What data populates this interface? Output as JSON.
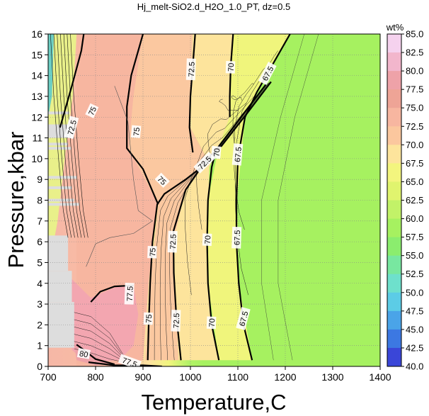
{
  "chart_data": {
    "type": "heatmap",
    "title": "Hj_melt-SiO2.d_H2O_1.0_PT, dz=0.5",
    "xlabel": "Temperature,C",
    "ylabel": "Pressure,kbar",
    "xlim": [
      700,
      1400
    ],
    "ylim": [
      0,
      16
    ],
    "x_ticks": [
      700,
      800,
      900,
      1000,
      1100,
      1200,
      1300,
      1400
    ],
    "y_ticks": [
      0,
      1,
      2,
      3,
      4,
      5,
      6,
      7,
      8,
      9,
      10,
      11,
      12,
      13,
      14,
      15,
      16
    ],
    "grid": true,
    "colorbar": {
      "label": "wt%",
      "range": [
        40.0,
        85.0
      ],
      "ticks": [
        "85.0",
        "82.5",
        "80.0",
        "77.5",
        "75.0",
        "72.5",
        "70.0",
        "67.5",
        "65.0",
        "62.5",
        "60.0",
        "57.5",
        "55.0",
        "52.5",
        "50.0",
        "47.5",
        "45.0",
        "42.5",
        "40.0"
      ],
      "colors": [
        "#f5d2ee",
        "#f2b6cc",
        "#eea2a8",
        "#eea496",
        "#f7b6a0",
        "#fbc79e",
        "#fde49c",
        "#f3f57e",
        "#e0f46e",
        "#c2f268",
        "#a6f160",
        "#8bed6e",
        "#78e7a0",
        "#6ee0cc",
        "#5ccce6",
        "#4aa4e8",
        "#3c78e2",
        "#3a46d8",
        "#3a18c8"
      ]
    },
    "contour_lines": [
      {
        "level": "80",
        "points": [
          [
            760,
            1.05
          ],
          [
            775,
            0.8
          ],
          [
            800,
            0.35
          ],
          [
            840,
            0.1
          ]
        ]
      },
      {
        "level": "77.5",
        "points": [
          [
            790,
            3.1
          ],
          [
            810,
            3.6
          ],
          [
            840,
            3.85
          ],
          [
            880,
            3.9
          ]
        ]
      },
      {
        "level": "77.5",
        "points": [
          [
            785,
            0.2
          ],
          [
            840,
            0.05
          ],
          [
            900,
            0.05
          ],
          [
            940,
            0.0
          ]
        ]
      },
      {
        "level": "75",
        "points": [
          [
            725,
            11.5
          ],
          [
            750,
            13.5
          ],
          [
            770,
            15.2
          ],
          [
            775,
            16
          ]
        ]
      },
      {
        "level": "75",
        "points": [
          [
            910,
            0.3
          ],
          [
            912,
            2.0
          ],
          [
            915,
            4.0
          ],
          [
            920,
            6.0
          ],
          [
            930,
            7.8
          ],
          [
            945,
            8.3
          ],
          [
            990,
            9.0
          ],
          [
            1035,
            9.8
          ],
          [
            1060,
            10.6
          ],
          [
            1110,
            12.1
          ],
          [
            1140,
            13.0
          ],
          [
            1160,
            13.6
          ]
        ]
      },
      {
        "level": "75",
        "points": [
          [
            900,
            16
          ],
          [
            875,
            14.0
          ],
          [
            866,
            12.5
          ],
          [
            866,
            10.5
          ],
          [
            900,
            9.5
          ],
          [
            932,
            7.8
          ]
        ]
      },
      {
        "level": "72.5",
        "points": [
          [
            980,
            0.3
          ],
          [
            970,
            2.5
          ],
          [
            965,
            4.5
          ],
          [
            964,
            6.5
          ],
          [
            990,
            8.5
          ],
          [
            1035,
            10.0
          ],
          [
            1065,
            10.6
          ],
          [
            1120,
            12.2
          ],
          [
            1170,
            13.7
          ]
        ]
      },
      {
        "level": "72.5",
        "points": [
          [
            1010,
            16
          ],
          [
            1005,
            14.5
          ],
          [
            1000,
            13.0
          ],
          [
            998,
            11.5
          ],
          [
            1005,
            10.3
          ]
        ]
      },
      {
        "level": "70",
        "points": [
          [
            1060,
            0.3
          ],
          [
            1045,
            2.0
          ],
          [
            1037,
            4.0
          ],
          [
            1035,
            6.0
          ],
          [
            1037,
            8.0
          ],
          [
            1045,
            9.6
          ],
          [
            1055,
            10.5
          ]
        ]
      },
      {
        "level": "70",
        "points": [
          [
            1090,
            16
          ],
          [
            1085,
            14.5
          ],
          [
            1083,
            13.0
          ],
          [
            1083,
            12.0
          ]
        ]
      },
      {
        "level": "67.5",
        "points": [
          [
            1130,
            0.3
          ],
          [
            1112,
            2.0
          ],
          [
            1102,
            4.0
          ],
          [
            1097,
            6.0
          ],
          [
            1097,
            8.0
          ],
          [
            1100,
            10.0
          ],
          [
            1115,
            12.0
          ],
          [
            1140,
            13.2
          ],
          [
            1160,
            14.0
          ],
          [
            1200,
            15.6
          ],
          [
            1210,
            16
          ]
        ]
      }
    ],
    "contour_label_positions": [
      {
        "text": "72.5",
        "x": 750,
        "y": 11.5,
        "angle": 75
      },
      {
        "text": "75",
        "x": 793,
        "y": 12.3,
        "angle": 65
      },
      {
        "text": "75",
        "x": 886,
        "y": 11.3,
        "angle": 85
      },
      {
        "text": "72.5",
        "x": 1002,
        "y": 14.3,
        "angle": 88
      },
      {
        "text": "70",
        "x": 1085,
        "y": 14.4,
        "angle": 88
      },
      {
        "text": "67.5",
        "x": 1163,
        "y": 14.1,
        "angle": 62
      },
      {
        "text": "75",
        "x": 940,
        "y": 8.95,
        "angle": -45
      },
      {
        "text": "72.5",
        "x": 1030,
        "y": 9.8,
        "angle": 45
      },
      {
        "text": "70",
        "x": 1055,
        "y": 10.3,
        "angle": 85
      },
      {
        "text": "67.5",
        "x": 1100,
        "y": 10.2,
        "angle": 85
      },
      {
        "text": "75",
        "x": 920,
        "y": 5.5,
        "angle": 88
      },
      {
        "text": "72.5",
        "x": 963,
        "y": 6.0,
        "angle": 88
      },
      {
        "text": "70",
        "x": 1036,
        "y": 6.1,
        "angle": 88
      },
      {
        "text": "67.5",
        "x": 1098,
        "y": 6.2,
        "angle": 88
      },
      {
        "text": "77.5",
        "x": 872,
        "y": 3.5,
        "angle": 88
      },
      {
        "text": "75",
        "x": 912,
        "y": 2.3,
        "angle": 88
      },
      {
        "text": "72.5",
        "x": 970,
        "y": 2.2,
        "angle": 88
      },
      {
        "text": "70",
        "x": 1045,
        "y": 2.1,
        "angle": 88
      },
      {
        "text": "67.5",
        "x": 1112,
        "y": 2.3,
        "angle": 75
      },
      {
        "text": "80",
        "x": 775,
        "y": 0.6,
        "angle": -10
      },
      {
        "text": "77.5",
        "x": 872,
        "y": 0.2,
        "angle": -20
      }
    ]
  }
}
